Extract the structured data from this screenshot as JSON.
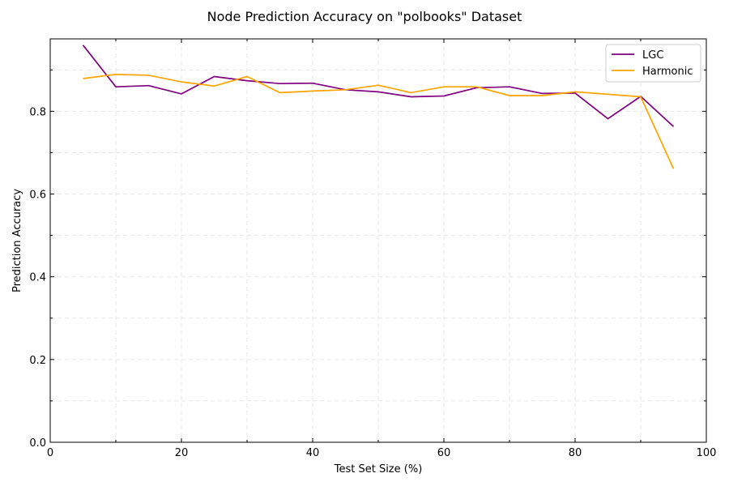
{
  "chart_data": {
    "type": "line",
    "title": "Node Prediction Accuracy on \"polbooks\" Dataset",
    "xlabel": "Test Set Size (%)",
    "ylabel": "Prediction Accuracy",
    "xlim": [
      0,
      100
    ],
    "ylim": [
      0,
      0.975
    ],
    "xticks": [
      0,
      20,
      40,
      60,
      80,
      100
    ],
    "xtick_labels": [
      "0",
      "20",
      "40",
      "60",
      "80",
      "100"
    ],
    "yticks": [
      0,
      0.2,
      0.4,
      0.6,
      0.8
    ],
    "ytick_labels": [
      "0.0",
      "0.2",
      "0.4",
      "0.6",
      "0.8"
    ],
    "x_minor_ticks": [
      10,
      30,
      50,
      70,
      90
    ],
    "y_minor_ticks": [
      0.1,
      0.3,
      0.5,
      0.7,
      0.9
    ],
    "grid": true,
    "legend_position": "top-right",
    "x": [
      5,
      10,
      15,
      20,
      25,
      30,
      35,
      40,
      45,
      50,
      55,
      60,
      65,
      70,
      75,
      80,
      85,
      90,
      95
    ],
    "series": [
      {
        "name": "LGC",
        "color": "#800080",
        "values": [
          0.96,
          0.859,
          0.862,
          0.842,
          0.884,
          0.874,
          0.867,
          0.868,
          0.852,
          0.847,
          0.835,
          0.837,
          0.857,
          0.859,
          0.843,
          0.844,
          0.782,
          0.836,
          0.763
        ]
      },
      {
        "name": "Harmonic",
        "color": "#ffa500",
        "values": [
          0.879,
          0.889,
          0.887,
          0.871,
          0.861,
          0.884,
          0.845,
          0.849,
          0.852,
          0.863,
          0.845,
          0.859,
          0.859,
          0.838,
          0.838,
          0.847,
          0.841,
          0.835,
          0.661
        ]
      }
    ]
  }
}
